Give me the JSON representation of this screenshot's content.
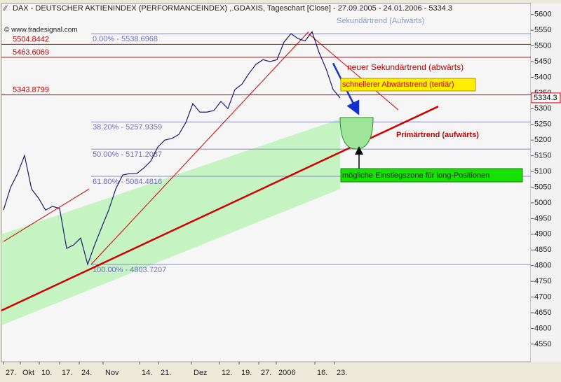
{
  "chart_data": {
    "type": "line",
    "title": "DAX  - DEUTSCHER AKTIENINDEX (PERFORMANCEINDEX) ,.GDAXIS, Tageschart [Close] - 27.09.2005 - 24.01.2006 - 5334.3",
    "copyright": "© www.tradesignal.com",
    "color": "#1a1a6e",
    "x": [
      0,
      2,
      4,
      6,
      8,
      10,
      12,
      14,
      16,
      18,
      20,
      22,
      24,
      26,
      28,
      30,
      32,
      34,
      36,
      38,
      40,
      42,
      44,
      46,
      48,
      50,
      52,
      54,
      56,
      58,
      60,
      62,
      64,
      66,
      68,
      70,
      72,
      74,
      76,
      78,
      80,
      82,
      84,
      86,
      88,
      90,
      92,
      94,
      96
    ],
    "values": [
      4977,
      5049,
      5093,
      5151,
      5044,
      5015,
      4977,
      4989,
      4982,
      4855,
      4866,
      4888,
      4804,
      4866,
      4922,
      4977,
      5044,
      5089,
      5093,
      5093,
      5111,
      5133,
      5178,
      5200,
      5205,
      5218,
      5256,
      5316,
      5289,
      5289,
      5294,
      5323,
      5300,
      5361,
      5378,
      5412,
      5441,
      5456,
      5450,
      5456,
      5512,
      5539,
      5523,
      5516,
      5545,
      5479,
      5427,
      5361,
      5334.3
    ],
    "xlim": [
      -0.6,
      150.4
    ],
    "ylim": [
      4494,
      5635
    ],
    "xticks": [
      {
        "value": 0,
        "label": "27."
      },
      {
        "value": 4.8,
        "label": "Okt"
      },
      {
        "value": 10.2,
        "label": "10."
      },
      {
        "value": 16,
        "label": "17."
      },
      {
        "value": 21.6,
        "label": "24."
      },
      {
        "value": 28.4,
        "label": "Nov"
      },
      {
        "value": 38.8,
        "label": "14."
      },
      {
        "value": 44.2,
        "label": "21."
      },
      {
        "value": 53.6,
        "label": "Dez"
      },
      {
        "value": 61.6,
        "label": "12."
      },
      {
        "value": 67.2,
        "label": "19."
      },
      {
        "value": 72.8,
        "label": "27."
      },
      {
        "value": 77.8,
        "label": "2006"
      },
      {
        "value": 88.8,
        "label": "16."
      },
      {
        "value": 94.4,
        "label": "23."
      }
    ],
    "yticks": [
      4550,
      4600,
      4650,
      4700,
      4750,
      4800,
      4850,
      4900,
      4950,
      5000,
      5050,
      5100,
      5150,
      5200,
      5250,
      5300,
      5350,
      5400,
      5450,
      5500,
      5550,
      5600
    ],
    "last_price": 5334.3,
    "levels": [
      5504.8442,
      5463.6069,
      5343.8799
    ],
    "fib_levels": [
      {
        "value": 5538.6968,
        "label": "0.00% - 5538.6968"
      },
      {
        "value": 5257.9359,
        "label": "38.20% - 5257.9359"
      },
      {
        "value": 5171.2087,
        "label": "50.00% - 5171.2087"
      },
      {
        "value": 5084.4816,
        "label": "61.80% - 5084.4816"
      },
      {
        "value": 4803.7207,
        "label": "100.00% - 4803.7207"
      }
    ],
    "channel": {
      "x": [
        -0.6,
        96
      ],
      "upper": [
        4900,
        5267
      ],
      "lower": [
        4610,
        5044
      ]
    },
    "trendlines": [
      {
        "label": "Primärtrend (aufwärts)",
        "x": [
          -0.6,
          124
        ],
        "y": [
          4657,
          5307
        ],
        "color": "#d00000"
      },
      {
        "label": "Sekundärtrend (Aufwärts)",
        "x": [
          25,
          87
        ],
        "y": [
          4804,
          5545
        ],
        "color": "#d00000"
      },
      {
        "x": [
          0,
          24.4
        ],
        "y": [
          4877,
          5044
        ],
        "color": "#d00000"
      },
      {
        "label": "neuer Sekundärtrend (abwärts)",
        "x": [
          87,
          112.6
        ],
        "y": [
          5539,
          5296
        ],
        "color": "#d00000"
      },
      {
        "label": "schnellerer Abwärtstrend (tertiär)",
        "x": [
          94,
          101
        ],
        "y": [
          5445,
          5289
        ],
        "color": "#1030d0"
      }
    ],
    "entry_zone_label": "mögliche Einstiegszone für long-Positionen"
  }
}
